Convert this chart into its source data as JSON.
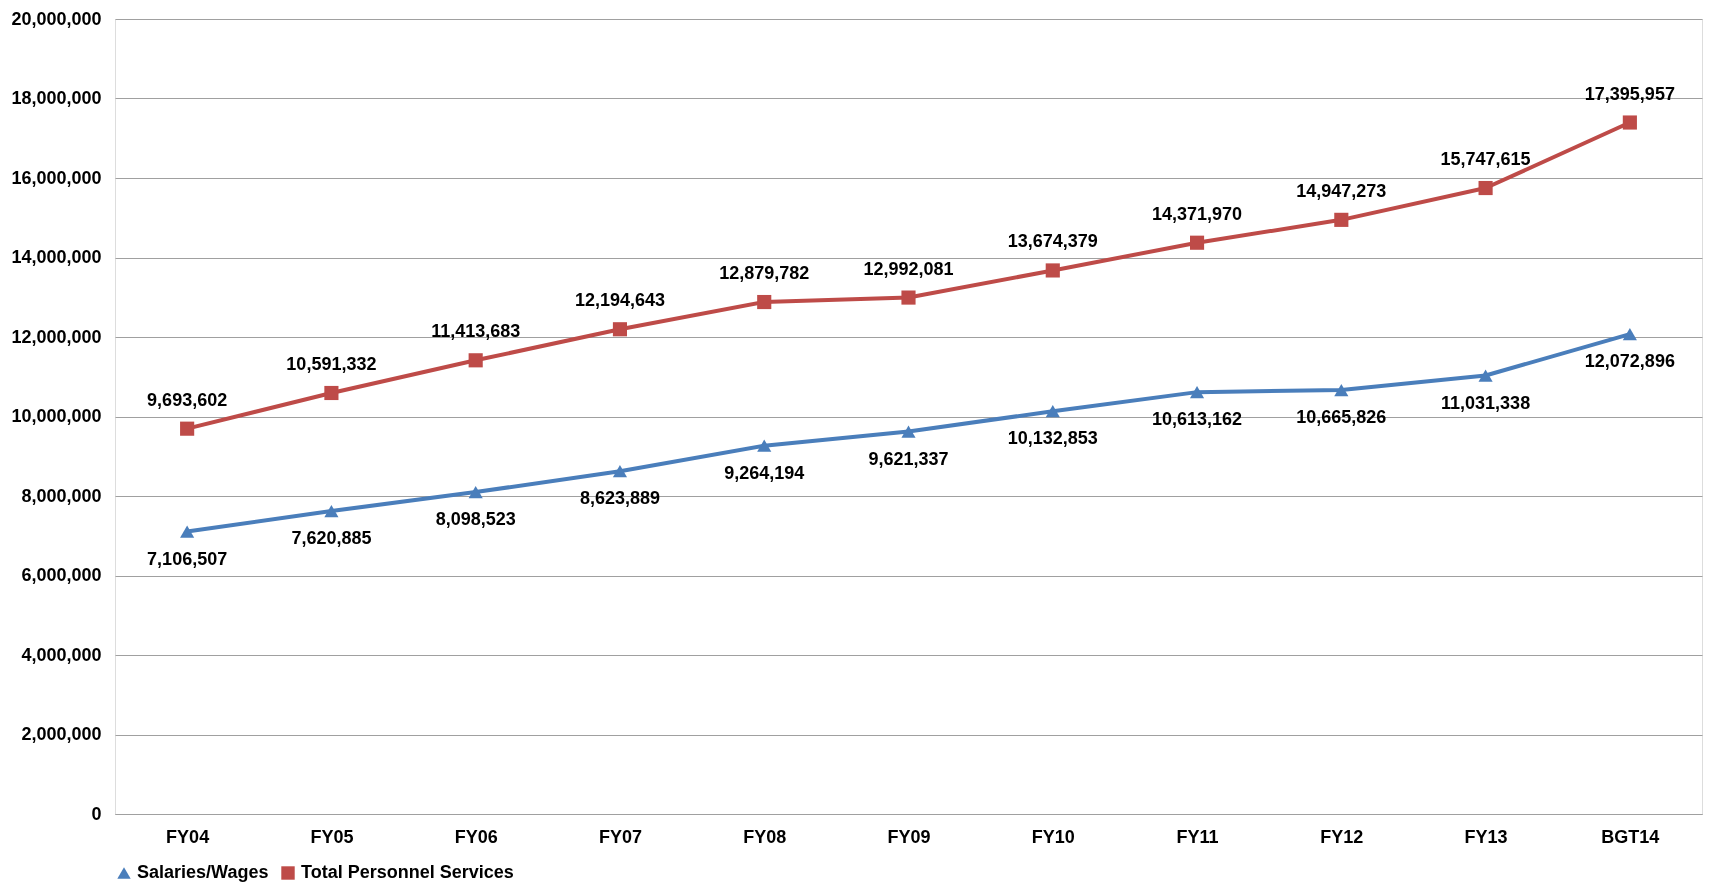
{
  "chart_data": {
    "type": "line",
    "categories": [
      "FY04",
      "FY05",
      "FY06",
      "FY07",
      "FY08",
      "FY09",
      "FY10",
      "FY11",
      "FY12",
      "FY13",
      "BGT14"
    ],
    "series": [
      {
        "name": "Salaries/Wages",
        "color": "#4a7ebb",
        "marker": "triangle",
        "values": [
          7106507,
          7620885,
          8098523,
          8623889,
          9264194,
          9621337,
          10132853,
          10613162,
          10665826,
          11031338,
          12072896
        ],
        "value_labels": [
          "7,106,507",
          "7,620,885",
          "8,098,523",
          "8,623,889",
          "9,264,194",
          "9,621,337",
          "10,132,853",
          "10,613,162",
          "10,665,826",
          "11,031,338",
          "12,072,896"
        ]
      },
      {
        "name": "Total Personnel Services",
        "color": "#be4b48",
        "marker": "square",
        "values": [
          9693602,
          10591332,
          11413683,
          12194643,
          12879782,
          12992081,
          13674379,
          14371970,
          14947273,
          15747615,
          17395957
        ],
        "value_labels": [
          "9,693,602",
          "10,591,332",
          "11,413,683",
          "12,194,643",
          "12,879,782",
          "12,992,081",
          "13,674,379",
          "14,371,970",
          "14,947,273",
          "15,747,615",
          "17,395,957"
        ]
      }
    ],
    "ylim": [
      0,
      20000000
    ],
    "yticks": [
      0,
      {
        "value": 2000000,
        "label": "2,000,000"
      },
      {
        "value": 4000000,
        "label": "4,000,000"
      },
      {
        "value": 6000000,
        "label": "6,000,000"
      },
      {
        "value": 8000000,
        "label": "8,000,000"
      },
      {
        "value": 10000000,
        "label": "10,000,000"
      },
      {
        "value": 12000000,
        "label": "12,000,000"
      },
      {
        "value": 14000000,
        "label": "14,000,000"
      },
      {
        "value": 16000000,
        "label": "16,000,000"
      },
      {
        "value": 18000000,
        "label": "18,000,000"
      },
      {
        "value": 20000000,
        "label": "20,000,000"
      }
    ],
    "grid": "y",
    "legend": "bottom"
  }
}
